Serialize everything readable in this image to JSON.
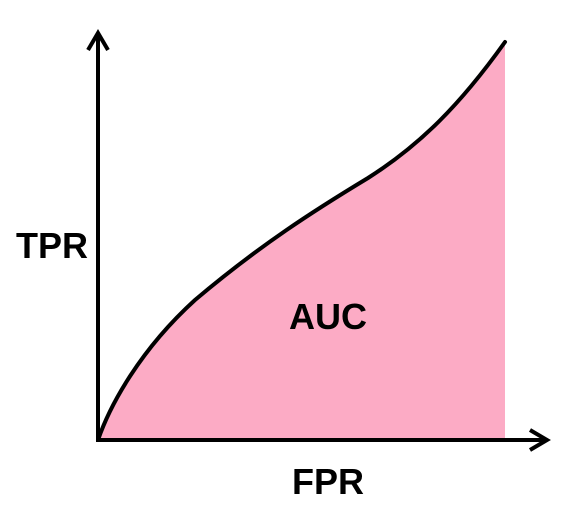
{
  "labels": {
    "y_axis": "TPR",
    "x_axis": "FPR",
    "area": "AUC"
  },
  "colors": {
    "area_fill": "#fcabc5",
    "curve": "#000000",
    "axes": "#000000",
    "background": "#ffffff"
  },
  "icons": {
    "x_axis_arrow": "arrow-right-icon",
    "y_axis_arrow": "arrow-up-icon"
  }
}
